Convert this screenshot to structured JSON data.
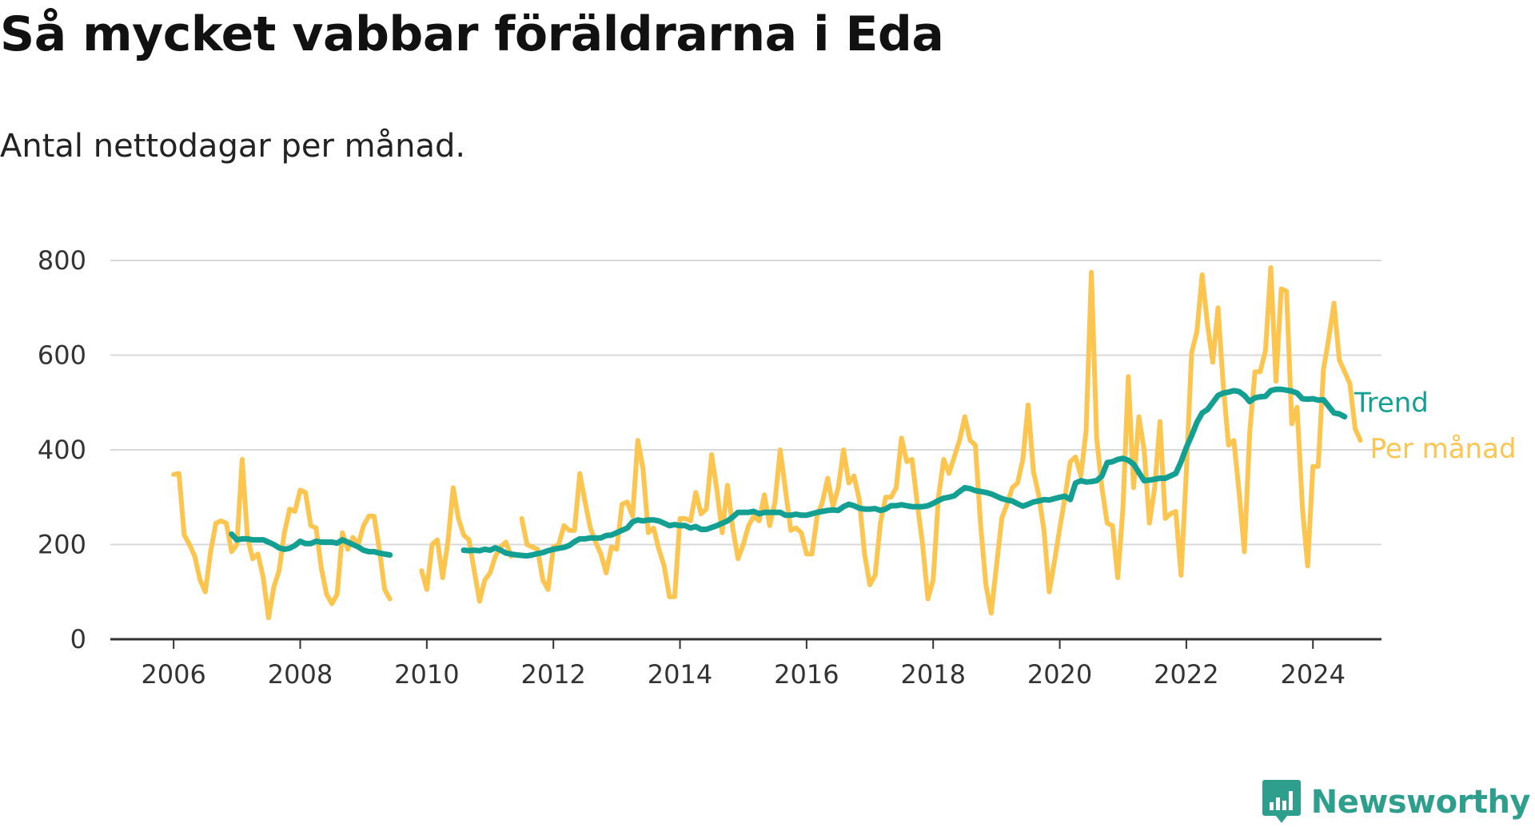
{
  "title": "Så mycket vabbar föräldrarna i Eda",
  "subtitle": "Antal nettodagar per månad.",
  "brand": {
    "name": "Newsworthy",
    "color": "#2e9e8d",
    "icon": "newsworthy-logo-icon"
  },
  "chart_data": {
    "type": "line",
    "ylim": [
      0,
      800
    ],
    "yticks": [
      "0",
      "200",
      "400",
      "600",
      "800"
    ],
    "xlim": [
      "2005-01",
      "2025-02"
    ],
    "xticks": [
      "2006",
      "2008",
      "2010",
      "2012",
      "2014",
      "2016",
      "2018",
      "2020",
      "2022",
      "2024"
    ],
    "grid": true,
    "legend": "inline labels at line ends",
    "series": [
      {
        "name": "Per månad",
        "color": "#fbc54f",
        "start": "2006-01",
        "values": [
          348,
          350,
          220,
          200,
          175,
          125,
          100,
          185,
          245,
          250,
          245,
          185,
          200,
          380,
          215,
          170,
          180,
          130,
          45,
          110,
          145,
          225,
          275,
          270,
          315,
          310,
          240,
          235,
          150,
          95,
          75,
          95,
          225,
          190,
          215,
          200,
          240,
          260,
          260,
          190,
          105,
          85,
          null,
          null,
          null,
          null,
          null,
          145,
          105,
          200,
          210,
          130,
          205,
          320,
          255,
          220,
          210,
          145,
          80,
          125,
          140,
          175,
          195,
          205,
          175,
          null,
          255,
          200,
          195,
          190,
          125,
          105,
          195,
          200,
          240,
          230,
          230,
          350,
          290,
          235,
          205,
          180,
          140,
          195,
          190,
          285,
          290,
          260,
          420,
          360,
          225,
          235,
          190,
          155,
          90,
          90,
          255,
          255,
          250,
          310,
          265,
          275,
          390,
          315,
          225,
          325,
          235,
          170,
          200,
          240,
          260,
          250,
          305,
          240,
          290,
          400,
          315,
          230,
          235,
          225,
          180,
          180,
          260,
          290,
          340,
          280,
          320,
          400,
          330,
          345,
          295,
          180,
          115,
          135,
          245,
          300,
          300,
          320,
          425,
          375,
          380,
          285,
          200,
          85,
          125,
          300,
          380,
          350,
          385,
          420,
          470,
          420,
          410,
          240,
          115,
          55,
          155,
          255,
          285,
          320,
          330,
          380,
          495,
          355,
          305,
          230,
          100,
          165,
          235,
          300,
          375,
          385,
          345,
          440,
          775,
          425,
          320,
          245,
          240,
          130,
          280,
          555,
          320,
          470,
          400,
          245,
          320,
          460,
          255,
          265,
          270,
          135,
          355,
          605,
          650,
          770,
          665,
          585,
          700,
          535,
          410,
          420,
          310,
          185,
          435,
          565,
          565,
          610,
          785,
          545,
          740,
          735,
          455,
          490,
          280,
          155,
          365,
          365,
          570,
          635,
          710,
          590,
          565,
          540,
          445,
          420
        ]
      },
      {
        "name": "Trend",
        "color": "#13a092",
        "start": "2006-12",
        "values": [
          222,
          210,
          212,
          212,
          210,
          210,
          210,
          205,
          200,
          193,
          190,
          192,
          198,
          207,
          202,
          202,
          207,
          205,
          205,
          205,
          203,
          210,
          205,
          200,
          195,
          188,
          185,
          185,
          182,
          180,
          178,
          null,
          null,
          null,
          null,
          null,
          null,
          null,
          null,
          null,
          null,
          null,
          null,
          null,
          188,
          187,
          188,
          187,
          190,
          188,
          193,
          188,
          182,
          180,
          178,
          177,
          176,
          178,
          181,
          183,
          187,
          190,
          192,
          194,
          198,
          206,
          212,
          212,
          214,
          214,
          214,
          219,
          220,
          225,
          230,
          235,
          248,
          252,
          250,
          252,
          252,
          250,
          245,
          240,
          242,
          240,
          240,
          235,
          238,
          232,
          232,
          236,
          240,
          245,
          250,
          258,
          268,
          268,
          268,
          270,
          265,
          268,
          268,
          268,
          268,
          262,
          262,
          264,
          262,
          262,
          265,
          268,
          270,
          272,
          273,
          272,
          280,
          285,
          282,
          277,
          275,
          275,
          276,
          272,
          275,
          282,
          282,
          284,
          282,
          280,
          280,
          280,
          282,
          287,
          293,
          298,
          300,
          303,
          312,
          320,
          318,
          314,
          312,
          310,
          307,
          302,
          297,
          294,
          292,
          286,
          281,
          285,
          290,
          292,
          295,
          294,
          297,
          300,
          302,
          295,
          330,
          335,
          332,
          333,
          335,
          345,
          373,
          375,
          380,
          382,
          378,
          370,
          352,
          335,
          336,
          338,
          340,
          340,
          345,
          350,
          375,
          405,
          430,
          458,
          478,
          485,
          500,
          515,
          520,
          522,
          525,
          523,
          515,
          502,
          510,
          512,
          513,
          525,
          528,
          528,
          526,
          524,
          520,
          508,
          507,
          508,
          505,
          506,
          492,
          478,
          476,
          470
        ]
      }
    ]
  }
}
